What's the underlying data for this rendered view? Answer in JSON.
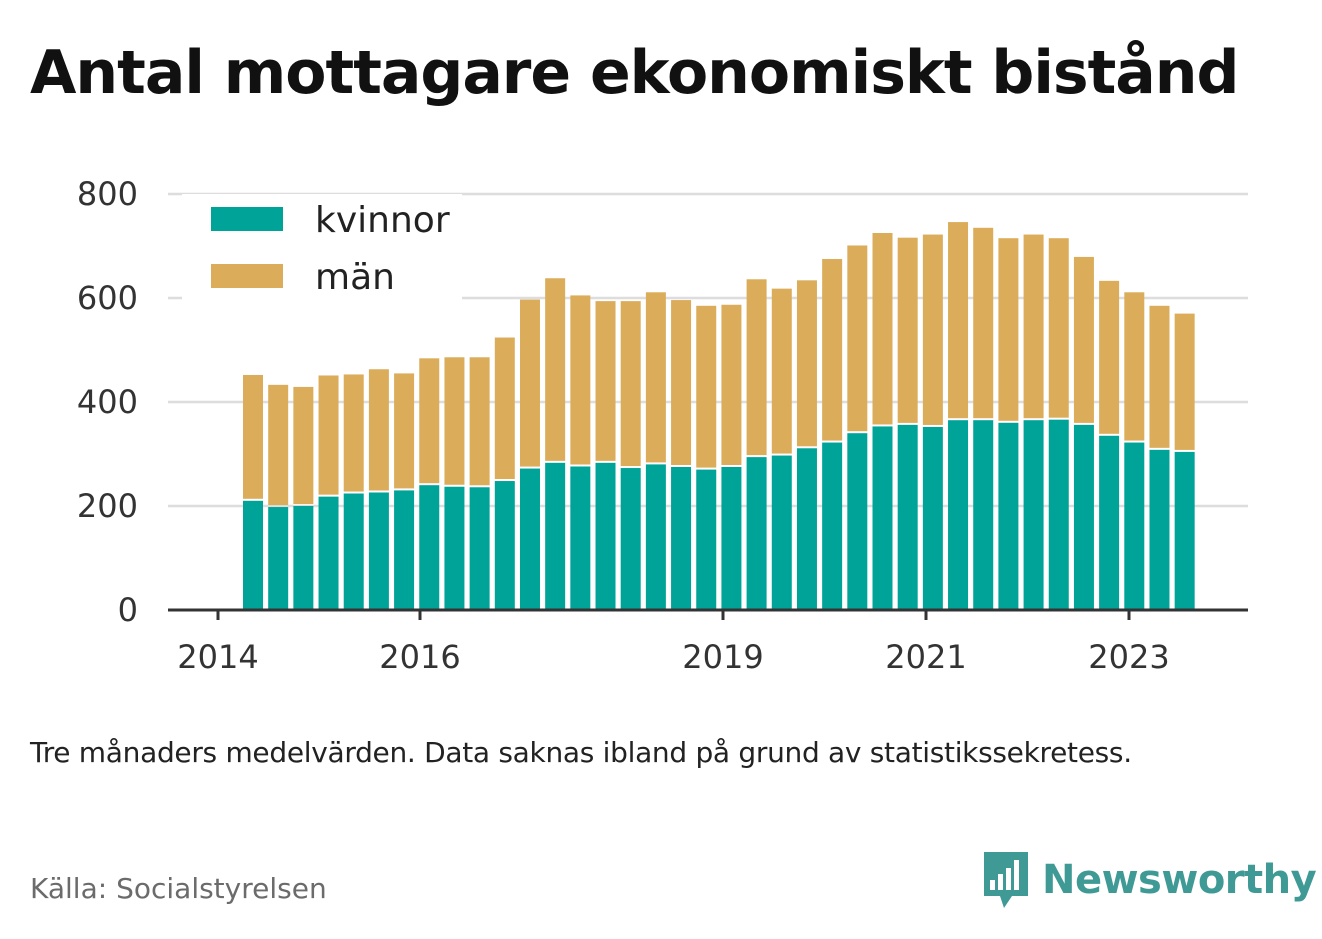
{
  "title": "Antal mottagare ekonomiskt bistånd",
  "note": "Tre månaders medelvärden. Data saknas ibland på grund av statistikssekretess.",
  "source": "Källa: Socialstyrelsen",
  "brand": {
    "name": "Newsworthy",
    "icon": "newsworthy-chart-bubble-icon",
    "color": "#3f9a96"
  },
  "colors": {
    "kvinnor": "#00a398",
    "man": "#dbad5b",
    "grid": "#dddddd",
    "axis": "#333333"
  },
  "chart_data": {
    "type": "bar",
    "stacked": true,
    "x_ticks": [
      "2014",
      "2016",
      "2019",
      "2021",
      "2023"
    ],
    "y_ticks": [
      "0",
      "200",
      "400",
      "600",
      "800"
    ],
    "ylim": [
      0,
      800
    ],
    "grid": true,
    "legend_position": "top-left",
    "series": [
      {
        "name": "kvinnor",
        "values": [
          210,
          198,
          200,
          218,
          224,
          226,
          230,
          240,
          237,
          236,
          248,
          272,
          283,
          276,
          283,
          273,
          280,
          275,
          270,
          275,
          294,
          297,
          311,
          322,
          340,
          353,
          356,
          352,
          365,
          365,
          360,
          365,
          366,
          356,
          335,
          322,
          308,
          304
        ]
      },
      {
        "name": "män",
        "values": [
          242,
          235,
          229,
          233,
          229,
          237,
          225,
          244,
          249,
          250,
          276,
          325,
          355,
          329,
          311,
          321,
          331,
          321,
          315,
          312,
          342,
          321,
          323,
          353,
          361,
          372,
          360,
          370,
          381,
          370,
          355,
          357,
          349,
          323,
          298,
          289,
          277,
          266
        ]
      }
    ]
  }
}
